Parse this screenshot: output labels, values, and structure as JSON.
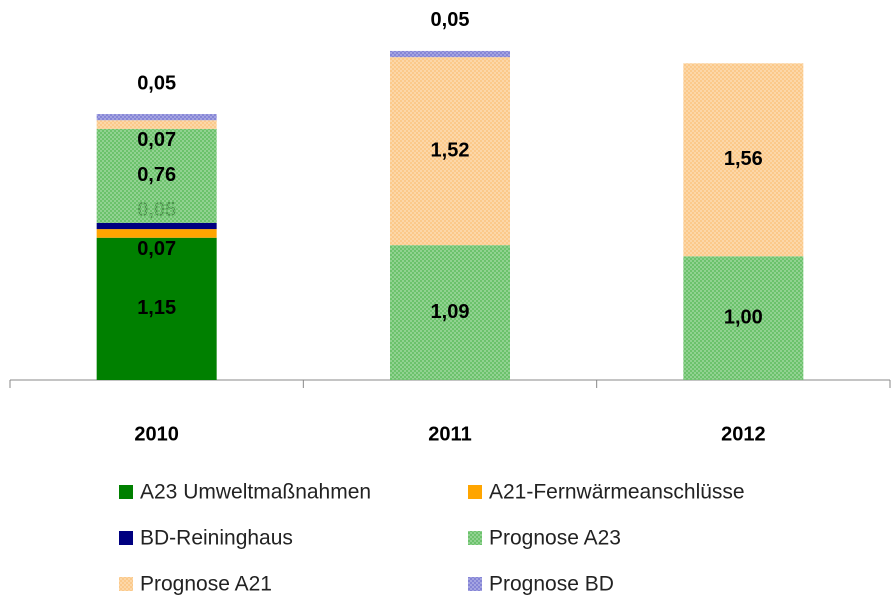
{
  "chart_data": {
    "type": "stacked_bar",
    "categories": [
      "2010",
      "2011",
      "2012"
    ],
    "ylim": [
      0,
      2.7
    ],
    "series": [
      {
        "name": "A23 Umweltmaßnahmen",
        "color": "#008000",
        "values": [
          1.15,
          null,
          null
        ],
        "value_labels": [
          "1,15",
          null,
          null
        ]
      },
      {
        "name": "A21-Fernwärmeanschlüsse",
        "color": "#ffa500",
        "values": [
          0.07,
          null,
          null
        ],
        "value_labels": [
          "0,07",
          null,
          null
        ]
      },
      {
        "name": "BD-Reininghaus",
        "color": "#000080",
        "values": [
          0.05,
          null,
          null
        ],
        "value_labels": [
          "0,05",
          null,
          null
        ]
      },
      {
        "name": "Prognose A23",
        "color": "#6cc26c",
        "pattern": "checkered",
        "values": [
          0.76,
          1.09,
          1.0
        ],
        "value_labels": [
          "0,76",
          "1,09",
          "1,00"
        ]
      },
      {
        "name": "Prognose A21",
        "color": "#fbc98a",
        "pattern": "checkered",
        "values": [
          0.07,
          1.52,
          1.56
        ],
        "value_labels": [
          "0,07",
          "1,52",
          "1,56"
        ]
      },
      {
        "name": "Prognose BD",
        "color": "#8585d6",
        "pattern": "checkered",
        "values": [
          0.05,
          0.05,
          null
        ],
        "value_labels": [
          "0,05",
          "0,05",
          null
        ]
      }
    ],
    "legend": "bottom"
  }
}
